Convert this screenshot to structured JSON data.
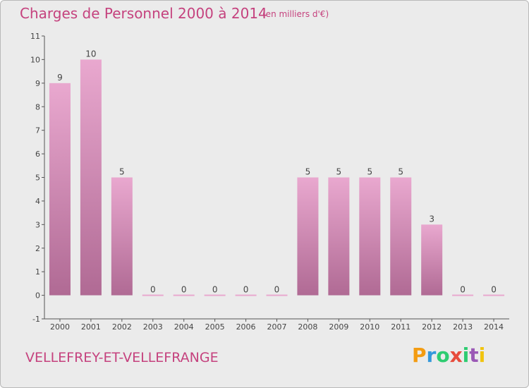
{
  "title": "Charges de Personnel 2000 à 2014",
  "subtitle": "(en milliers d'€)",
  "commune": "VELLEFREY-ET-VELLEFRANGE",
  "logo": {
    "text": "Proxiti",
    "letters": [
      "P",
      "r",
      "o",
      "x",
      "i",
      "t",
      "i"
    ],
    "colors": [
      "#f39c12",
      "#3498db",
      "#2ecc71",
      "#e74c3c",
      "#2ecc71",
      "#9b59b6",
      "#f1c40f"
    ]
  },
  "colors": {
    "accent": "#c5427e",
    "bar_top": "#e9a8cf",
    "bar_bottom": "#b06a94",
    "background": "#ebebeb"
  },
  "chart_data": {
    "type": "bar",
    "categories": [
      "2000",
      "2001",
      "2002",
      "2003",
      "2004",
      "2005",
      "2006",
      "2007",
      "2008",
      "2009",
      "2010",
      "2011",
      "2012",
      "2013",
      "2014"
    ],
    "values": [
      9,
      10,
      5,
      0,
      0,
      0,
      0,
      0,
      5,
      5,
      5,
      5,
      3,
      0,
      0
    ],
    "yticks": [
      "-1",
      "0",
      "1",
      "2",
      "3",
      "4",
      "5",
      "6",
      "7",
      "8",
      "9",
      "10",
      "11"
    ],
    "ylim": [
      -1,
      11
    ],
    "grid": false
  }
}
